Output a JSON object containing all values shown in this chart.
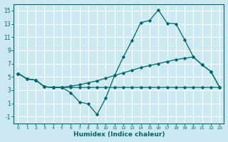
{
  "xlabel": "Humidex (Indice chaleur)",
  "bg_color": "#cce8f0",
  "grid_color": "#ffffff",
  "line_color": "#006868",
  "ylim": [
    -2,
    16
  ],
  "xlim": [
    -0.5,
    23.5
  ],
  "yticks": [
    -1,
    1,
    3,
    5,
    7,
    9,
    11,
    13,
    15
  ],
  "xticks": [
    0,
    1,
    2,
    3,
    4,
    5,
    6,
    7,
    8,
    9,
    10,
    11,
    12,
    13,
    14,
    15,
    16,
    17,
    18,
    19,
    20,
    21,
    22,
    23
  ],
  "line1_x": [
    0,
    1,
    2,
    3,
    4,
    5,
    6,
    7,
    8,
    9,
    10,
    11,
    12,
    13,
    14,
    15,
    16,
    17,
    18,
    19,
    20,
    21,
    22,
    23
  ],
  "line1_y": [
    5.5,
    4.7,
    4.5,
    3.5,
    3.4,
    3.4,
    2.6,
    1.2,
    0.9,
    -0.7,
    1.8,
    5.2,
    8.0,
    10.5,
    13.2,
    13.5,
    15.1,
    13.1,
    13.0,
    10.6,
    8.0,
    6.8,
    5.8,
    3.4
  ],
  "line2_x": [
    0,
    1,
    2,
    3,
    4,
    5,
    6,
    7,
    8,
    9,
    10,
    11,
    12,
    13,
    14,
    15,
    16,
    17,
    18,
    19,
    20,
    21,
    22,
    23
  ],
  "line2_y": [
    5.5,
    4.7,
    4.5,
    3.5,
    3.4,
    3.4,
    3.4,
    3.4,
    3.4,
    3.4,
    3.4,
    3.4,
    3.4,
    3.4,
    3.4,
    3.4,
    3.4,
    3.4,
    3.4,
    3.4,
    3.4,
    3.4,
    3.4,
    3.4
  ],
  "line3_x": [
    0,
    1,
    2,
    3,
    4,
    5,
    6,
    7,
    8,
    9,
    10,
    11,
    12,
    13,
    14,
    15,
    16,
    17,
    18,
    19,
    20,
    21,
    22,
    23
  ],
  "line3_y": [
    5.5,
    4.7,
    4.5,
    3.5,
    3.4,
    3.4,
    3.6,
    3.8,
    4.1,
    4.4,
    4.8,
    5.2,
    5.6,
    6.0,
    6.4,
    6.7,
    7.0,
    7.3,
    7.6,
    7.8,
    8.0,
    6.8,
    5.8,
    3.4
  ]
}
